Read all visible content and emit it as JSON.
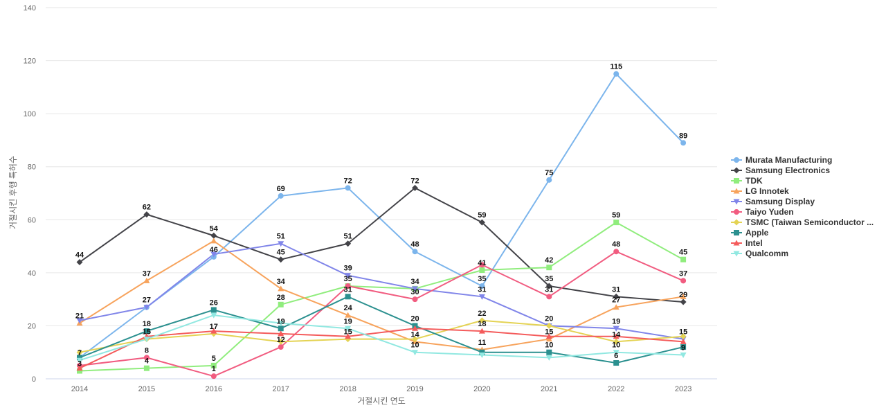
{
  "chart_data": {
    "type": "line",
    "title": "",
    "xlabel": "거절시킨 연도",
    "ylabel": "거절시킨 후행 특허수",
    "x": [
      "2014",
      "2015",
      "2016",
      "2017",
      "2018",
      "2019",
      "2020",
      "2021",
      "2022",
      "2023"
    ],
    "ylim": [
      0,
      140
    ],
    "yticks": [
      0,
      20,
      40,
      60,
      80,
      100,
      120,
      140
    ],
    "grid": true,
    "legend_position": "right",
    "series": [
      {
        "name": "Murata Manufacturing",
        "color": "#7cb5ec",
        "marker": "circle",
        "values": [
          8,
          27,
          46,
          69,
          72,
          48,
          35,
          75,
          115,
          89
        ]
      },
      {
        "name": "Samsung Electronics",
        "color": "#434348",
        "marker": "diamond",
        "values": [
          44,
          62,
          54,
          45,
          51,
          72,
          59,
          35,
          31,
          29
        ]
      },
      {
        "name": "TDK",
        "color": "#90ed7d",
        "marker": "square",
        "values": [
          3,
          4,
          5,
          28,
          35,
          34,
          41,
          42,
          59,
          45
        ]
      },
      {
        "name": "LG Innotek",
        "color": "#f7a35c",
        "marker": "triangle",
        "values": [
          21,
          37,
          52,
          34,
          24,
          14,
          11,
          15,
          27,
          31
        ]
      },
      {
        "name": "Samsung Display",
        "color": "#8085e9",
        "marker": "triangle-down",
        "values": [
          22,
          27,
          47,
          51,
          39,
          34,
          31,
          20,
          19,
          15
        ]
      },
      {
        "name": "Taiyo Yuden",
        "color": "#f15c80",
        "marker": "circle",
        "values": [
          5,
          8,
          1,
          12,
          35,
          30,
          43,
          31,
          48,
          37
        ]
      },
      {
        "name": "TSMC (Taiwan Semiconductor ...",
        "color": "#e4d354",
        "marker": "diamond",
        "values": [
          10,
          15,
          17,
          14,
          15,
          15,
          22,
          20,
          14,
          16
        ]
      },
      {
        "name": "Apple",
        "color": "#2b908f",
        "marker": "square",
        "values": [
          8,
          18,
          26,
          19,
          31,
          20,
          10,
          10,
          6,
          12
        ]
      },
      {
        "name": "Intel",
        "color": "#f45b5b",
        "marker": "triangle",
        "values": [
          4,
          16,
          18,
          17,
          16,
          19,
          18,
          16,
          16,
          14
        ]
      },
      {
        "name": "Qualcomm",
        "color": "#91e8e1",
        "marker": "triangle-down",
        "values": [
          7,
          15,
          24,
          21,
          19,
          10,
          9,
          8,
          10,
          9
        ]
      }
    ],
    "data_labels": [
      {
        "text": "44",
        "x": "2014",
        "y": 44
      },
      {
        "text": "21",
        "x": "2014",
        "y": 21
      },
      {
        "text": "7",
        "x": "2014",
        "y": 7
      },
      {
        "text": "3",
        "x": "2014",
        "y": 3
      },
      {
        "text": "62",
        "x": "2015",
        "y": 62
      },
      {
        "text": "37",
        "x": "2015",
        "y": 37
      },
      {
        "text": "27",
        "x": "2015",
        "y": 27
      },
      {
        "text": "18",
        "x": "2015",
        "y": 18
      },
      {
        "text": "15",
        "x": "2015",
        "y": 15
      },
      {
        "text": "8",
        "x": "2015",
        "y": 8
      },
      {
        "text": "4",
        "x": "2015",
        "y": 4
      },
      {
        "text": "54",
        "x": "2016",
        "y": 54
      },
      {
        "text": "46",
        "x": "2016",
        "y": 46
      },
      {
        "text": "26",
        "x": "2016",
        "y": 26
      },
      {
        "text": "17",
        "x": "2016",
        "y": 17
      },
      {
        "text": "5",
        "x": "2016",
        "y": 5
      },
      {
        "text": "1",
        "x": "2016",
        "y": 1
      },
      {
        "text": "69",
        "x": "2017",
        "y": 69
      },
      {
        "text": "51",
        "x": "2017",
        "y": 51
      },
      {
        "text": "45",
        "x": "2017",
        "y": 45
      },
      {
        "text": "34",
        "x": "2017",
        "y": 34
      },
      {
        "text": "28",
        "x": "2017",
        "y": 28
      },
      {
        "text": "19",
        "x": "2017",
        "y": 19
      },
      {
        "text": "12",
        "x": "2017",
        "y": 12
      },
      {
        "text": "72",
        "x": "2018",
        "y": 72
      },
      {
        "text": "51",
        "x": "2018",
        "y": 51
      },
      {
        "text": "39",
        "x": "2018",
        "y": 39
      },
      {
        "text": "35",
        "x": "2018",
        "y": 35
      },
      {
        "text": "31",
        "x": "2018",
        "y": 31
      },
      {
        "text": "24",
        "x": "2018",
        "y": 24
      },
      {
        "text": "19",
        "x": "2018",
        "y": 19
      },
      {
        "text": "15",
        "x": "2018",
        "y": 15
      },
      {
        "text": "72",
        "x": "2019",
        "y": 72
      },
      {
        "text": "48",
        "x": "2019",
        "y": 48
      },
      {
        "text": "34",
        "x": "2019",
        "y": 34
      },
      {
        "text": "30",
        "x": "2019",
        "y": 30
      },
      {
        "text": "20",
        "x": "2019",
        "y": 20
      },
      {
        "text": "14",
        "x": "2019",
        "y": 14
      },
      {
        "text": "10",
        "x": "2019",
        "y": 10
      },
      {
        "text": "59",
        "x": "2020",
        "y": 59
      },
      {
        "text": "41",
        "x": "2020",
        "y": 41
      },
      {
        "text": "35",
        "x": "2020",
        "y": 35
      },
      {
        "text": "31",
        "x": "2020",
        "y": 31
      },
      {
        "text": "22",
        "x": "2020",
        "y": 22
      },
      {
        "text": "18",
        "x": "2020",
        "y": 18
      },
      {
        "text": "11",
        "x": "2020",
        "y": 11
      },
      {
        "text": "75",
        "x": "2021",
        "y": 75
      },
      {
        "text": "42",
        "x": "2021",
        "y": 42
      },
      {
        "text": "35",
        "x": "2021",
        "y": 35
      },
      {
        "text": "31",
        "x": "2021",
        "y": 31
      },
      {
        "text": "20",
        "x": "2021",
        "y": 20
      },
      {
        "text": "15",
        "x": "2021",
        "y": 15
      },
      {
        "text": "10",
        "x": "2021",
        "y": 10
      },
      {
        "text": "115",
        "x": "2022",
        "y": 115
      },
      {
        "text": "59",
        "x": "2022",
        "y": 59
      },
      {
        "text": "48",
        "x": "2022",
        "y": 48
      },
      {
        "text": "31",
        "x": "2022",
        "y": 31
      },
      {
        "text": "27",
        "x": "2022",
        "y": 27
      },
      {
        "text": "19",
        "x": "2022",
        "y": 19
      },
      {
        "text": "14",
        "x": "2022",
        "y": 14
      },
      {
        "text": "10",
        "x": "2022",
        "y": 10
      },
      {
        "text": "6",
        "x": "2022",
        "y": 6
      },
      {
        "text": "89",
        "x": "2023",
        "y": 89
      },
      {
        "text": "45",
        "x": "2023",
        "y": 45
      },
      {
        "text": "37",
        "x": "2023",
        "y": 37
      },
      {
        "text": "29",
        "x": "2023",
        "y": 29
      },
      {
        "text": "15",
        "x": "2023",
        "y": 15
      },
      {
        "text": "9",
        "x": "2023",
        "y": 9
      }
    ]
  }
}
